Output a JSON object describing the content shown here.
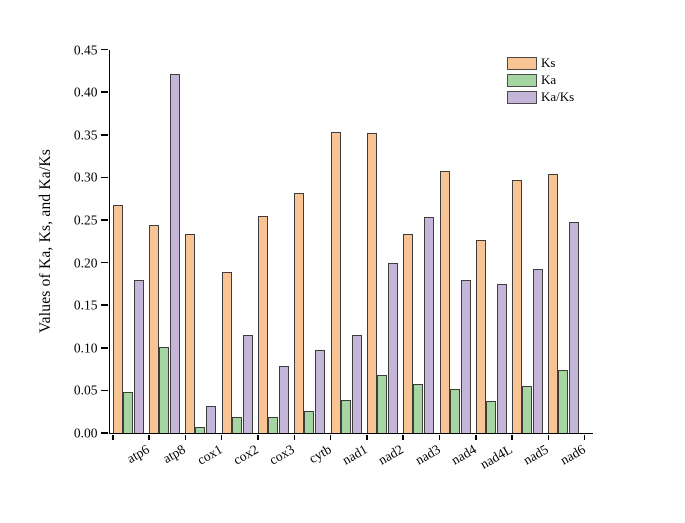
{
  "chart_data": {
    "type": "bar",
    "title": "",
    "xlabel": "",
    "ylabel": "Values of Ka, Ks, and Ka/Ks",
    "ylim": [
      0,
      0.45
    ],
    "ytick_labels": [
      "0.00",
      "0.05",
      "0.10",
      "0.15",
      "0.20",
      "0.25",
      "0.30",
      "0.35",
      "0.40",
      "0.45"
    ],
    "grid": false,
    "legend_position": "top-right",
    "categories": [
      "atp6",
      "atp8",
      "cox1",
      "cox2",
      "cox3",
      "cytb",
      "nad1",
      "nad2",
      "nad3",
      "nad4",
      "nad4L",
      "nad5",
      "nad6"
    ],
    "series": [
      {
        "name": "Ks",
        "color": "#F8C493",
        "values": [
          0.267,
          0.244,
          0.234,
          0.189,
          0.255,
          0.282,
          0.353,
          0.352,
          0.233,
          0.307,
          0.226,
          0.297,
          0.304
        ]
      },
      {
        "name": "Ka",
        "color": "#A5D5A0",
        "values": [
          0.048,
          0.101,
          0.007,
          0.019,
          0.019,
          0.026,
          0.039,
          0.068,
          0.057,
          0.052,
          0.037,
          0.055,
          0.074
        ]
      },
      {
        "name": "Ka/Ks",
        "color": "#C4B5D9",
        "values": [
          0.18,
          0.421,
          0.032,
          0.115,
          0.079,
          0.097,
          0.115,
          0.199,
          0.253,
          0.179,
          0.175,
          0.192,
          0.248
        ]
      }
    ],
    "bar_border_color": "#3d3d3d",
    "axis_color": "#000000"
  }
}
